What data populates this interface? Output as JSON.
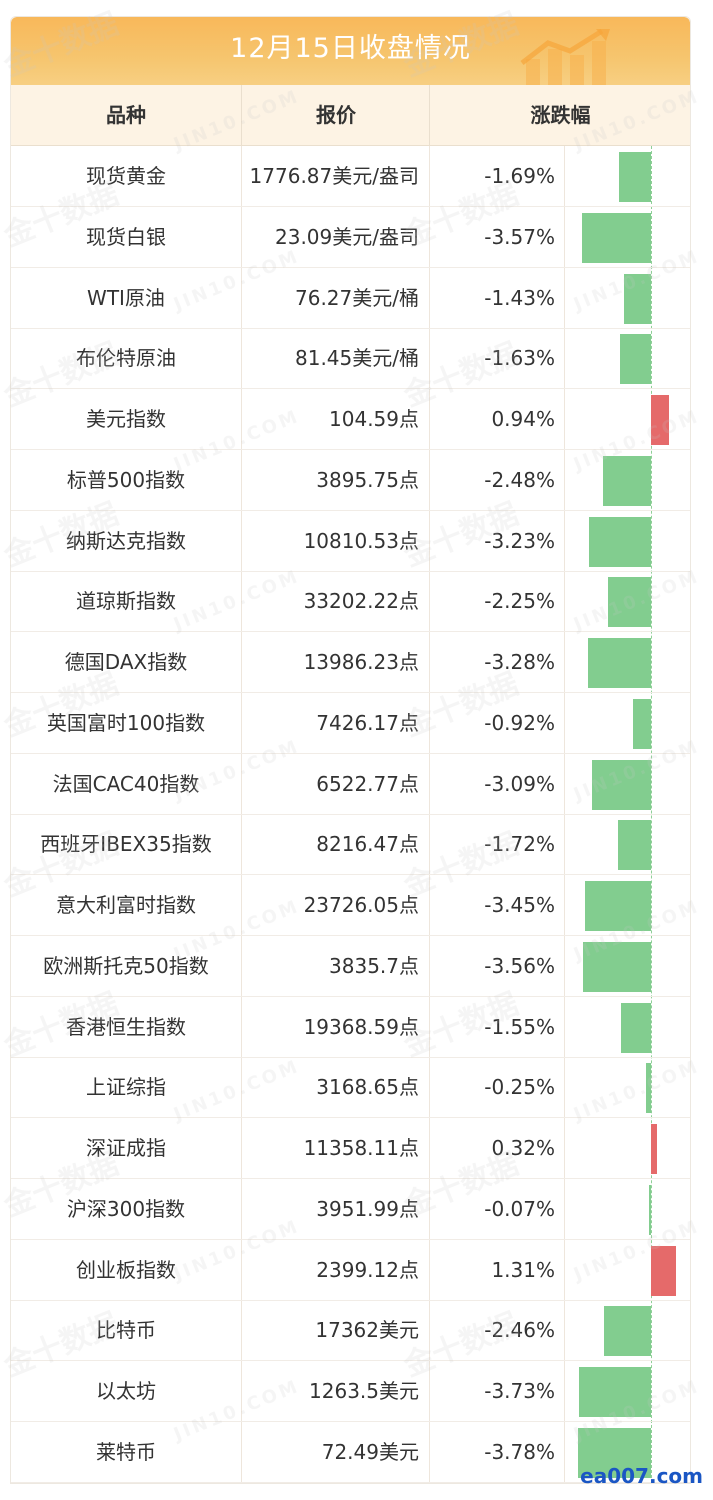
{
  "title": "12月15日收盘情况",
  "headers": {
    "name": "品种",
    "price": "报价",
    "change": "涨跌幅"
  },
  "colors": {
    "down": "#82cd8f",
    "up": "#e56a6a",
    "accent": "#f8b85a"
  },
  "watermarks": [
    "金十数据",
    "JIN10.COM"
  ],
  "logo": "ea007.com",
  "rows": [
    {
      "name": "现货黄金",
      "price": "1776.87美元/盎司",
      "change": "-1.69%",
      "value": -1.69
    },
    {
      "name": "现货白银",
      "price": "23.09美元/盎司",
      "change": "-3.57%",
      "value": -3.57
    },
    {
      "name": "WTI原油",
      "price": "76.27美元/桶",
      "change": "-1.43%",
      "value": -1.43
    },
    {
      "name": "布伦特原油",
      "price": "81.45美元/桶",
      "change": "-1.63%",
      "value": -1.63
    },
    {
      "name": "美元指数",
      "price": "104.59点",
      "change": "0.94%",
      "value": 0.94
    },
    {
      "name": "标普500指数",
      "price": "3895.75点",
      "change": "-2.48%",
      "value": -2.48
    },
    {
      "name": "纳斯达克指数",
      "price": "10810.53点",
      "change": "-3.23%",
      "value": -3.23
    },
    {
      "name": "道琼斯指数",
      "price": "33202.22点",
      "change": "-2.25%",
      "value": -2.25
    },
    {
      "name": "德国DAX指数",
      "price": "13986.23点",
      "change": "-3.28%",
      "value": -3.28
    },
    {
      "name": "英国富时100指数",
      "price": "7426.17点",
      "change": "-0.92%",
      "value": -0.92
    },
    {
      "name": "法国CAC40指数",
      "price": "6522.77点",
      "change": "-3.09%",
      "value": -3.09
    },
    {
      "name": "西班牙IBEX35指数",
      "price": "8216.47点",
      "change": "-1.72%",
      "value": -1.72
    },
    {
      "name": "意大利富时指数",
      "price": "23726.05点",
      "change": "-3.45%",
      "value": -3.45
    },
    {
      "name": "欧洲斯托克50指数",
      "price": "3835.7点",
      "change": "-3.56%",
      "value": -3.56
    },
    {
      "name": "香港恒生指数",
      "price": "19368.59点",
      "change": "-1.55%",
      "value": -1.55
    },
    {
      "name": "上证综指",
      "price": "3168.65点",
      "change": "-0.25%",
      "value": -0.25
    },
    {
      "name": "深证成指",
      "price": "11358.11点",
      "change": "0.32%",
      "value": 0.32
    },
    {
      "name": "沪深300指数",
      "price": "3951.99点",
      "change": "-0.07%",
      "value": -0.07
    },
    {
      "name": "创业板指数",
      "price": "2399.12点",
      "change": "1.31%",
      "value": 1.31
    },
    {
      "name": "比特币",
      "price": "17362美元",
      "change": "-2.46%",
      "value": -2.46
    },
    {
      "name": "以太坊",
      "price": "1263.5美元",
      "change": "-3.73%",
      "value": -3.73
    },
    {
      "name": "莱特币",
      "price": "72.49美元",
      "change": "-3.78%",
      "value": -3.78
    }
  ]
}
